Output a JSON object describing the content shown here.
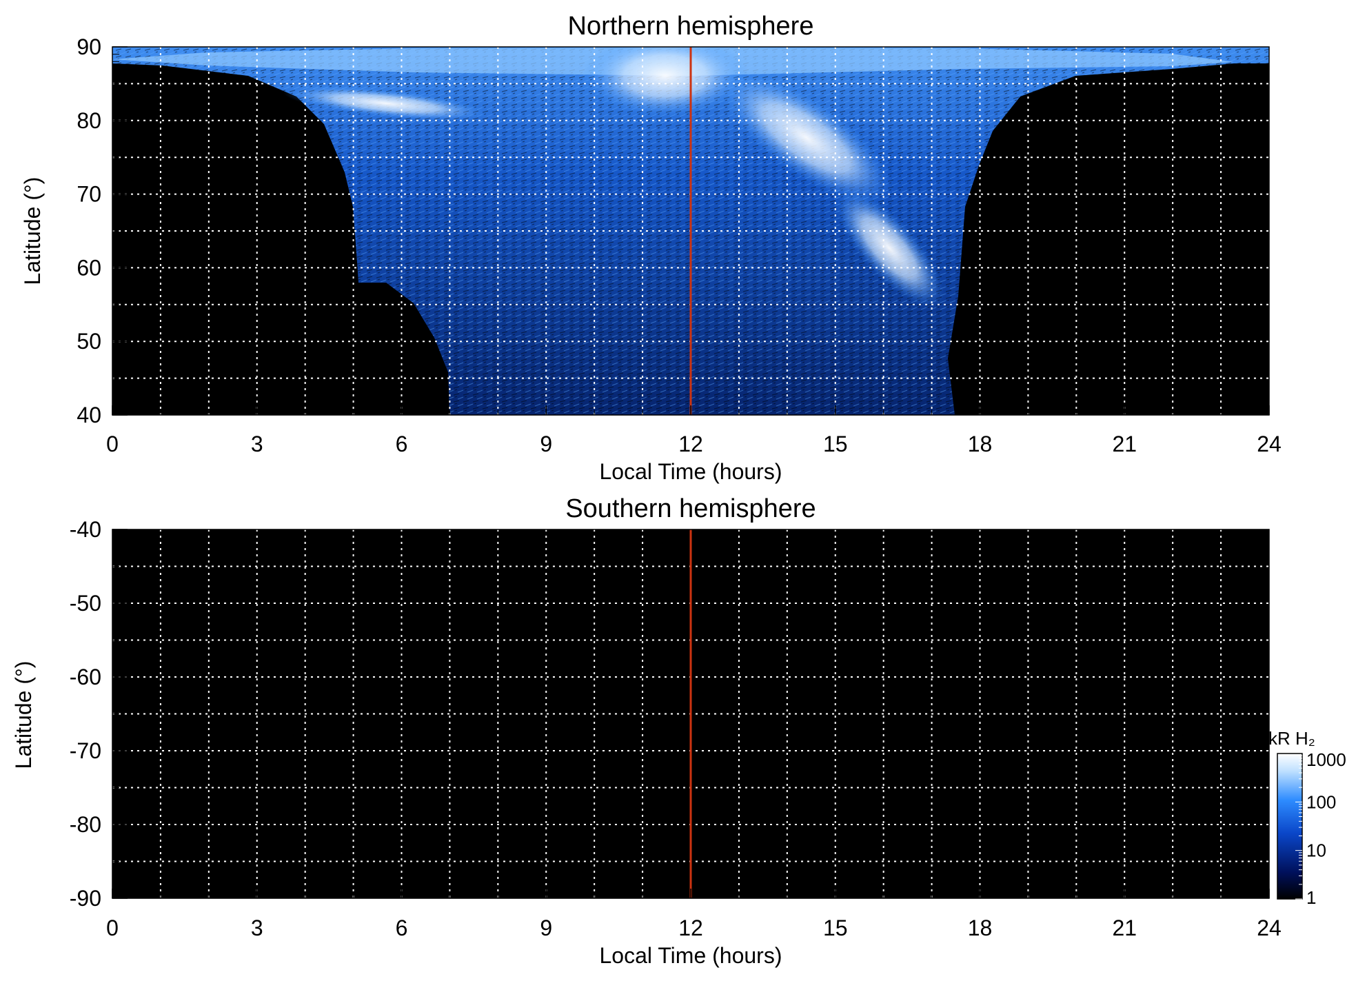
{
  "chart_data": [
    {
      "type": "heatmap",
      "title": "Northern hemisphere",
      "xlabel": "Local Time (hours)",
      "ylabel": "Latitude (°)",
      "xlim": [
        0,
        24
      ],
      "ylim": [
        40,
        90
      ],
      "xticks": [
        "0",
        "3",
        "6",
        "9",
        "12",
        "15",
        "18",
        "21",
        "24"
      ],
      "yticks": [
        "40",
        "50",
        "60",
        "70",
        "80",
        "90"
      ],
      "x_gridlines": [
        1,
        2,
        3,
        4,
        5,
        6,
        7,
        8,
        9,
        10,
        11,
        12,
        13,
        14,
        15,
        16,
        17,
        18,
        19,
        20,
        21,
        22,
        23
      ],
      "y_gridlines": [
        45,
        50,
        55,
        60,
        65,
        70,
        75,
        80,
        85
      ],
      "grid": "dotted white",
      "vertical_marker": {
        "x": 12,
        "color": "#cc3311"
      },
      "emission_summary": {
        "coverage_local_time": [
          7,
          17.5
        ],
        "coverage_extends_polar": [
          0,
          24
        ],
        "bright_arcs": [
          {
            "local_time": [
              4.5,
              8.5
            ],
            "latitude": [
              80,
              83
            ],
            "level": "high"
          },
          {
            "local_time": [
              10.5,
              13
            ],
            "latitude": [
              82,
              89
            ],
            "level": "high"
          },
          {
            "local_time": [
              13,
              17
            ],
            "latitude": [
              57,
              80
            ],
            "level": "high"
          }
        ]
      }
    },
    {
      "type": "heatmap",
      "title": "Southern hemisphere",
      "xlabel": "Local Time (hours)",
      "ylabel": "Latitude (°)",
      "xlim": [
        0,
        24
      ],
      "ylim": [
        -90,
        -40
      ],
      "xticks": [
        "0",
        "3",
        "6",
        "9",
        "12",
        "15",
        "18",
        "21",
        "24"
      ],
      "yticks": [
        "-40",
        "-50",
        "-60",
        "-70",
        "-80",
        "-90"
      ],
      "x_gridlines": [
        1,
        2,
        3,
        4,
        5,
        6,
        7,
        8,
        9,
        10,
        11,
        12,
        13,
        14,
        15,
        16,
        17,
        18,
        19,
        20,
        21,
        22,
        23
      ],
      "y_gridlines": [
        -45,
        -50,
        -55,
        -60,
        -65,
        -70,
        -75,
        -80,
        -85
      ],
      "grid": "dotted white",
      "vertical_marker": {
        "x": 12,
        "color": "#cc3311"
      },
      "emission_summary": {
        "note_level": "none"
      }
    }
  ],
  "colorbar": {
    "title": "kR H₂",
    "scale": "log",
    "range": [
      1,
      1000
    ],
    "ticks": [
      "1000",
      "100",
      "10",
      "1"
    ],
    "colors": [
      "#000000",
      "#00105a",
      "#0a46c8",
      "#2e8cff",
      "#bfe0ff",
      "#ffffff"
    ]
  }
}
